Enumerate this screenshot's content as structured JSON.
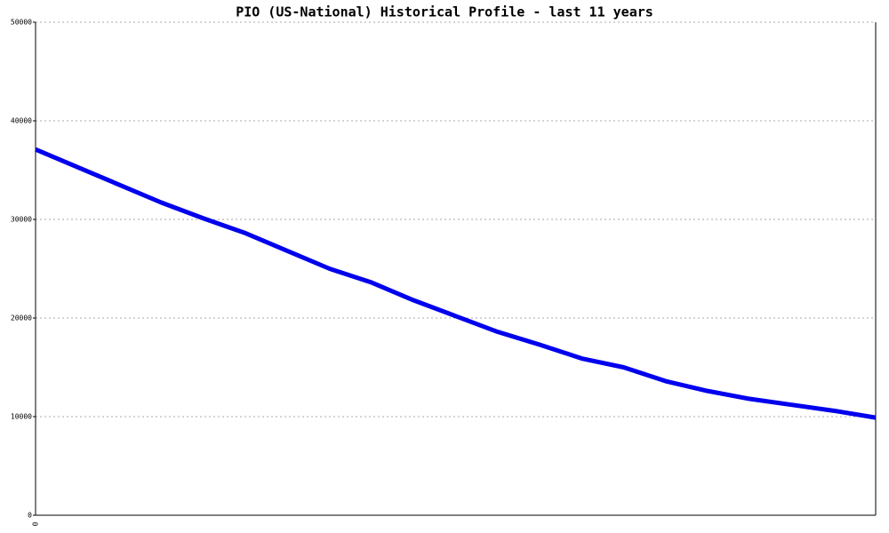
{
  "chart_data": {
    "type": "line",
    "title": "PIO (US-National) Historical Profile - last 11 years",
    "categories": [
      "0",
      null,
      null,
      null,
      null,
      null,
      null,
      null,
      null,
      null,
      null,
      null,
      null,
      null,
      null,
      null,
      null,
      null,
      null,
      null,
      null
    ],
    "series": [
      {
        "color": "#0000ee",
        "values": [
          37100,
          35300,
          33500,
          31700,
          30100,
          28600,
          26800,
          25000,
          23600,
          21800,
          20200,
          18600,
          17300,
          15900,
          15000,
          13600,
          12600,
          11800,
          11200,
          10600,
          9900
        ]
      }
    ],
    "ylim": [
      0,
      50000
    ],
    "yticks": [
      0,
      10000,
      20000,
      30000,
      40000,
      50000
    ],
    "grid": true
  }
}
